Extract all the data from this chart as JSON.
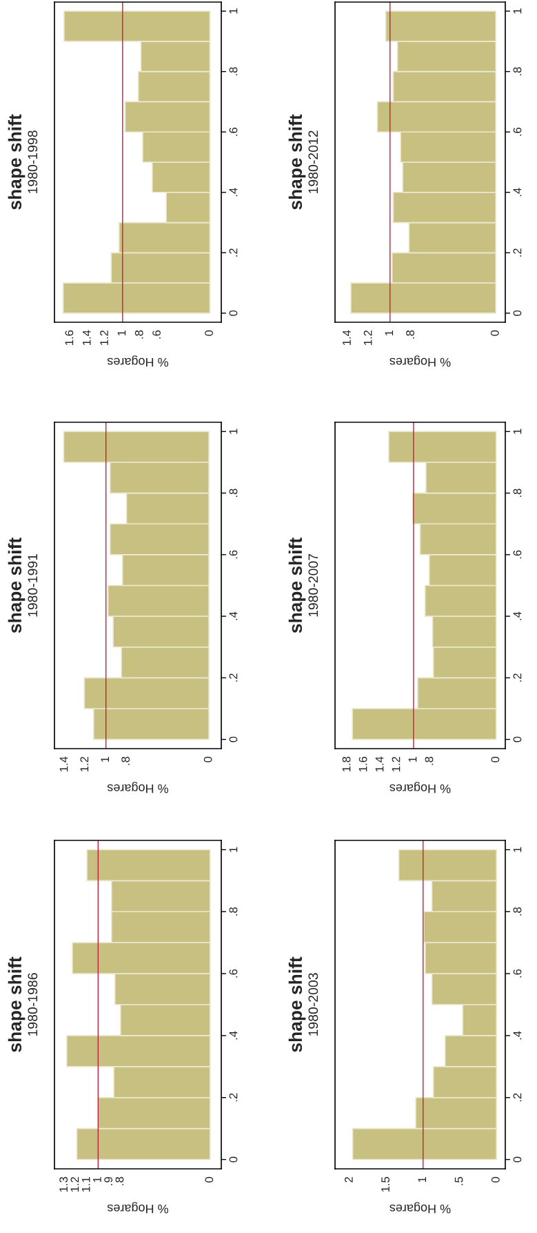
{
  "chart_data": [
    {
      "type": "histogram",
      "orientation": "horizontal",
      "title": "shape shift",
      "subtitle": "1980-1998",
      "xlabel": "% Hogares",
      "bins": [
        0,
        0.1,
        0.2,
        0.3,
        0.4,
        0.5,
        0.6,
        0.7,
        0.8,
        0.9,
        1.0
      ],
      "values": [
        1.68,
        1.13,
        1.04,
        0.5,
        0.66,
        0.77,
        0.97,
        0.82,
        0.79,
        1.67
      ],
      "color": "#c8c080",
      "xlim": [
        1.78,
        -0.13
      ],
      "xticks": [
        1.6,
        1.4,
        1.2,
        1,
        {
          "value": 0.8,
          "label": ".8"
        },
        {
          "value": 0.6,
          "label": ".6"
        },
        0
      ],
      "ylim": [
        -0.03,
        1.03
      ],
      "yticks": [
        0,
        {
          "value": 0.2,
          "label": ".2"
        },
        {
          "value": 0.4,
          "label": ".4"
        },
        {
          "value": 0.6,
          "label": ".6"
        },
        {
          "value": 0.8,
          "label": ".8"
        },
        1
      ],
      "ref_lines": [
        {
          "axis": "x",
          "value": 1,
          "color": "#c0203a"
        }
      ]
    },
    {
      "type": "histogram",
      "orientation": "horizontal",
      "title": "shape shift",
      "subtitle": "1980-2012",
      "xlabel": "% Hogares",
      "bins": [
        0,
        0.1,
        0.2,
        0.3,
        0.4,
        0.5,
        0.6,
        0.7,
        0.8,
        0.9,
        1.0
      ],
      "values": [
        1.37,
        0.98,
        0.82,
        0.97,
        0.88,
        0.9,
        1.12,
        0.97,
        0.93,
        1.04
      ],
      "color": "#c8c080",
      "xlim": [
        1.52,
        -0.09
      ],
      "xticks": [
        1.4,
        1.2,
        1,
        {
          "value": 0.8,
          "label": ".8"
        },
        0
      ],
      "ylim": [
        -0.03,
        1.03
      ],
      "yticks": [
        0,
        {
          "value": 0.2,
          "label": ".2"
        },
        {
          "value": 0.4,
          "label": ".4"
        },
        {
          "value": 0.6,
          "label": ".6"
        },
        {
          "value": 0.8,
          "label": ".8"
        },
        1
      ],
      "ref_lines": [
        {
          "axis": "x",
          "value": 1,
          "color": "#c0203a"
        }
      ]
    },
    {
      "type": "histogram",
      "orientation": "horizontal",
      "title": "shape shift",
      "subtitle": "1980-1991",
      "xlabel": "% Hogares",
      "bins": [
        0,
        0.1,
        0.2,
        0.3,
        0.4,
        0.5,
        0.6,
        0.7,
        0.8,
        0.9,
        1.0
      ],
      "values": [
        1.12,
        1.21,
        0.85,
        0.93,
        0.98,
        0.84,
        0.96,
        0.8,
        0.96,
        1.41
      ],
      "color": "#c8c080",
      "xlim": [
        1.5,
        -0.12
      ],
      "xticks": [
        1.4,
        1.2,
        1,
        {
          "value": 0.8,
          "label": ".8"
        },
        0
      ],
      "ylim": [
        -0.03,
        1.03
      ],
      "yticks": [
        0,
        {
          "value": 0.2,
          "label": ".2"
        },
        {
          "value": 0.4,
          "label": ".4"
        },
        {
          "value": 0.6,
          "label": ".6"
        },
        {
          "value": 0.8,
          "label": ".8"
        },
        1
      ],
      "ref_lines": [
        {
          "axis": "x",
          "value": 1,
          "color": "#c0203a"
        }
      ]
    },
    {
      "type": "histogram",
      "orientation": "horizontal",
      "title": "shape shift",
      "subtitle": "1980-2007",
      "xlabel": "% Hogares",
      "bins": [
        0,
        0.1,
        0.2,
        0.3,
        0.4,
        0.5,
        0.6,
        0.7,
        0.8,
        0.9,
        1.0
      ],
      "values": [
        1.74,
        0.95,
        0.76,
        0.77,
        0.86,
        0.81,
        0.92,
        1.01,
        0.85,
        1.3
      ],
      "color": "#c8c080",
      "xlim": [
        1.95,
        -0.11
      ],
      "xticks": [
        1.8,
        1.6,
        1.4,
        1.2,
        1,
        {
          "value": 0.8,
          "label": ".8"
        },
        0
      ],
      "ylim": [
        -0.03,
        1.03
      ],
      "yticks": [
        0,
        {
          "value": 0.2,
          "label": ".2"
        },
        {
          "value": 0.4,
          "label": ".4"
        },
        {
          "value": 0.6,
          "label": ".6"
        },
        {
          "value": 0.8,
          "label": ".8"
        },
        1
      ],
      "ref_lines": [
        {
          "axis": "x",
          "value": 1,
          "color": "#c0203a"
        }
      ]
    },
    {
      "type": "histogram",
      "orientation": "horizontal",
      "title": "shape shift",
      "subtitle": "1980-1986",
      "xlabel": "% Hogares",
      "bins": [
        0,
        0.1,
        0.2,
        0.3,
        0.4,
        0.5,
        0.6,
        0.7,
        0.8,
        0.9,
        1.0
      ],
      "values": [
        1.19,
        1.0,
        0.86,
        1.28,
        0.8,
        0.85,
        1.23,
        0.88,
        0.88,
        1.1
      ],
      "color": "#c8c080",
      "xlim": [
        1.39,
        -0.1
      ],
      "xticks": [
        1.3,
        1.2,
        1.1,
        1,
        {
          "value": 0.9,
          "label": ".9"
        },
        {
          "value": 0.8,
          "label": ".8"
        },
        0
      ],
      "ylim": [
        -0.03,
        1.03
      ],
      "yticks": [
        0,
        {
          "value": 0.2,
          "label": ".2"
        },
        {
          "value": 0.4,
          "label": ".4"
        },
        {
          "value": 0.6,
          "label": ".6"
        },
        {
          "value": 0.8,
          "label": ".8"
        },
        1
      ],
      "ref_lines": [
        {
          "axis": "x",
          "value": 1,
          "color": "#c0203a"
        }
      ]
    },
    {
      "type": "histogram",
      "orientation": "horizontal",
      "title": "shape shift",
      "subtitle": "1980-2003",
      "xlabel": "% Hogares",
      "bins": [
        0,
        0.1,
        0.2,
        0.3,
        0.4,
        0.5,
        0.6,
        0.7,
        0.8,
        0.9,
        1.0
      ],
      "values": [
        1.96,
        1.1,
        0.86,
        0.7,
        0.46,
        0.88,
        0.97,
        0.99,
        0.88,
        1.33
      ],
      "color": "#c8c080",
      "xlim": [
        2.2,
        -0.12
      ],
      "xticks": [
        2,
        1.5,
        1,
        {
          "value": 0.5,
          "label": ".5"
        },
        0
      ],
      "ylim": [
        -0.03,
        1.03
      ],
      "yticks": [
        0,
        {
          "value": 0.2,
          "label": ".2"
        },
        {
          "value": 0.4,
          "label": ".4"
        },
        {
          "value": 0.6,
          "label": ".6"
        },
        {
          "value": 0.8,
          "label": ".8"
        },
        1
      ],
      "ref_lines": [
        {
          "axis": "x",
          "value": 1,
          "color": "#c0203a"
        }
      ]
    }
  ]
}
